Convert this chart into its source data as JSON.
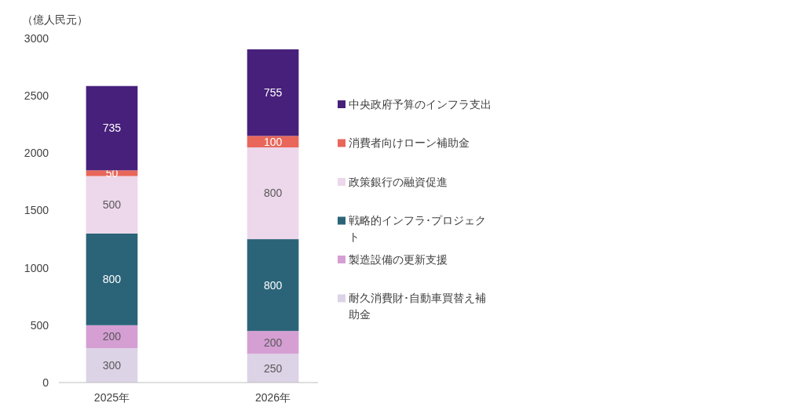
{
  "chart_data": {
    "type": "bar",
    "stacked": true,
    "ylabel": "（億人民元）",
    "categories": [
      "2025年",
      "2026年"
    ],
    "series": [
      {
        "name": "耐久消費財･自動車買替え補助金",
        "color": "#dcd3e6",
        "values": [
          300,
          250
        ]
      },
      {
        "name": "製造設備の更新支援",
        "color": "#d59fd3",
        "values": [
          200,
          200
        ]
      },
      {
        "name": "戦略的インフラ･プロジェクト",
        "color": "#2b6479",
        "values": [
          800,
          800
        ]
      },
      {
        "name": "政策銀行の融資促進",
        "color": "#edd7eb",
        "values": [
          500,
          800
        ]
      },
      {
        "name": "消費者向けローン補助金",
        "color": "#e8675a",
        "values": [
          50,
          100
        ]
      },
      {
        "name": "中央政府予算のインフラ支出",
        "color": "#47207b",
        "values": [
          735,
          755
        ]
      }
    ],
    "ylim": [
      0,
      3000
    ],
    "yticks": [
      0,
      500,
      1000,
      1500,
      2000,
      2500,
      3000
    ],
    "grid": false,
    "legend": "right",
    "data_labels": true
  }
}
